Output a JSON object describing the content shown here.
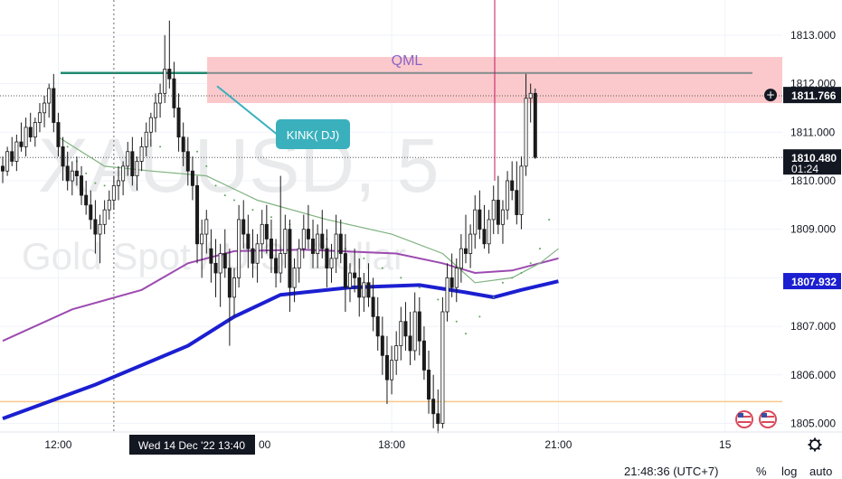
{
  "chart_data": {
    "type": "candlestick",
    "symbol_watermark": "XAUUSD, 5",
    "subtitle_watermark": "Gold Spot / U.S. Dollar",
    "ylim": [
      1804.6,
      1813.5
    ],
    "y_ticks": [
      1805.0,
      1806.0,
      1807.0,
      1808.0,
      1809.0,
      1810.0,
      1811.0,
      1812.0,
      1813.0
    ],
    "y_tick_labels": [
      "1805.000",
      "1806.000",
      "1807.000",
      "1808.000",
      "1809.000",
      "1810.000",
      "1811.000",
      "1812.000",
      "1813.000"
    ],
    "x_ticks": [
      {
        "label": "12:00",
        "bar": 12
      },
      {
        "label": "18:00",
        "bar": 84
      },
      {
        "label": "21:00",
        "bar": 120
      },
      {
        "label": "15",
        "bar": 156
      }
    ],
    "price_badges": [
      {
        "value": "1811.766",
        "color": "#131722"
      },
      {
        "value": "1810.480",
        "sub": "01:24",
        "color": "#131722"
      },
      {
        "value": "1807.932",
        "color": "#1b1fd0"
      }
    ],
    "crosshair": {
      "label": "Wed 14 Dec '22   13:40",
      "bar": 24
    },
    "annotations": {
      "zone_label": "QML",
      "zone_top": 1812.55,
      "zone_bottom": 1811.6,
      "qml_level": 1812.22,
      "callout": "KINK( DJ)",
      "support_level": 1805.45,
      "dotted_level": 1811.75,
      "last_price_level": 1810.48
    },
    "candles_ohlc": [
      [
        1810.3,
        1810.5,
        1809.95,
        1810.2
      ],
      [
        1810.2,
        1810.7,
        1810.1,
        1810.6
      ],
      [
        1810.6,
        1810.9,
        1810.3,
        1810.4
      ],
      [
        1810.4,
        1810.95,
        1810.2,
        1810.8
      ],
      [
        1810.8,
        1811.2,
        1810.6,
        1810.7
      ],
      [
        1810.7,
        1811.3,
        1810.5,
        1811.1
      ],
      [
        1811.1,
        1811.4,
        1810.8,
        1810.9
      ],
      [
        1810.9,
        1811.3,
        1810.7,
        1811.2
      ],
      [
        1811.2,
        1811.6,
        1811.0,
        1811.4
      ],
      [
        1811.4,
        1811.75,
        1811.1,
        1811.6
      ],
      [
        1811.6,
        1812.0,
        1811.3,
        1811.9
      ],
      [
        1811.9,
        1812.2,
        1811.0,
        1811.2
      ],
      [
        1811.2,
        1811.4,
        1810.5,
        1810.7
      ],
      [
        1810.7,
        1810.9,
        1810.0,
        1810.3
      ],
      [
        1810.3,
        1810.6,
        1809.8,
        1810.0
      ],
      [
        1810.0,
        1810.4,
        1809.7,
        1810.2
      ],
      [
        1810.2,
        1810.5,
        1809.9,
        1810.1
      ],
      [
        1810.1,
        1810.3,
        1809.5,
        1809.7
      ],
      [
        1809.7,
        1810.0,
        1809.3,
        1809.5
      ],
      [
        1809.5,
        1809.8,
        1809.0,
        1809.2
      ],
      [
        1809.2,
        1809.6,
        1808.5,
        1808.9
      ],
      [
        1808.9,
        1809.3,
        1808.3,
        1809.1
      ],
      [
        1809.1,
        1809.6,
        1808.9,
        1809.4
      ],
      [
        1809.4,
        1809.8,
        1809.2,
        1809.6
      ],
      [
        1809.6,
        1810.1,
        1809.4,
        1809.9
      ],
      [
        1809.9,
        1810.3,
        1809.6,
        1810.0
      ],
      [
        1810.0,
        1810.4,
        1809.7,
        1810.3
      ],
      [
        1810.3,
        1810.8,
        1810.1,
        1810.6
      ],
      [
        1810.6,
        1810.9,
        1809.9,
        1810.1
      ],
      [
        1810.1,
        1810.5,
        1809.8,
        1810.4
      ],
      [
        1810.4,
        1810.9,
        1810.2,
        1810.7
      ],
      [
        1810.7,
        1811.2,
        1810.5,
        1811.0
      ],
      [
        1811.0,
        1811.4,
        1810.7,
        1811.3
      ],
      [
        1811.3,
        1811.8,
        1811.0,
        1811.6
      ],
      [
        1811.6,
        1812.0,
        1811.3,
        1811.8
      ],
      [
        1811.8,
        1813.0,
        1811.6,
        1812.3
      ],
      [
        1812.3,
        1813.3,
        1811.9,
        1812.1
      ],
      [
        1812.1,
        1812.45,
        1811.3,
        1811.5
      ],
      [
        1811.5,
        1811.8,
        1810.6,
        1810.9
      ],
      [
        1810.9,
        1811.2,
        1810.3,
        1810.6
      ],
      [
        1810.6,
        1810.9,
        1809.9,
        1810.2
      ],
      [
        1810.2,
        1810.5,
        1809.6,
        1809.9
      ],
      [
        1809.9,
        1810.1,
        1808.3,
        1808.7
      ],
      [
        1808.7,
        1809.2,
        1808.0,
        1808.9
      ],
      [
        1808.9,
        1809.4,
        1808.5,
        1809.2
      ],
      [
        1808.6,
        1809.0,
        1807.9,
        1808.3
      ],
      [
        1808.3,
        1808.8,
        1807.6,
        1808.1
      ],
      [
        1808.1,
        1808.7,
        1807.4,
        1808.5
      ],
      [
        1808.5,
        1809.0,
        1808.0,
        1808.2
      ],
      [
        1808.2,
        1808.6,
        1806.6,
        1807.6
      ],
      [
        1807.6,
        1808.2,
        1807.2,
        1808.0
      ],
      [
        1808.0,
        1809.5,
        1807.8,
        1809.2
      ],
      [
        1809.2,
        1809.6,
        1808.6,
        1808.9
      ],
      [
        1808.9,
        1809.3,
        1808.2,
        1808.6
      ],
      [
        1808.6,
        1809.0,
        1808.0,
        1808.3
      ],
      [
        1808.3,
        1808.9,
        1807.9,
        1808.7
      ],
      [
        1808.7,
        1809.4,
        1808.4,
        1809.1
      ],
      [
        1809.1,
        1809.5,
        1808.5,
        1808.8
      ],
      [
        1808.8,
        1809.2,
        1808.1,
        1808.4
      ],
      [
        1808.4,
        1808.8,
        1807.8,
        1808.1
      ],
      [
        1808.1,
        1810.1,
        1807.9,
        1808.5
      ],
      [
        1808.5,
        1809.3,
        1808.2,
        1809.0
      ],
      [
        1809.0,
        1809.2,
        1807.3,
        1807.8
      ],
      [
        1807.8,
        1808.4,
        1807.5,
        1808.2
      ],
      [
        1808.2,
        1808.8,
        1807.9,
        1808.6
      ],
      [
        1808.6,
        1809.3,
        1808.4,
        1809.0
      ],
      [
        1809.0,
        1809.5,
        1808.6,
        1808.8
      ],
      [
        1808.8,
        1809.2,
        1808.2,
        1808.5
      ],
      [
        1808.5,
        1809.1,
        1808.2,
        1808.9
      ],
      [
        1808.9,
        1809.4,
        1808.4,
        1808.6
      ],
      [
        1808.6,
        1809.0,
        1807.8,
        1808.2
      ],
      [
        1808.2,
        1808.7,
        1807.9,
        1808.4
      ],
      [
        1808.4,
        1809.3,
        1808.1,
        1808.9
      ],
      [
        1808.9,
        1809.2,
        1808.3,
        1808.5
      ],
      [
        1808.5,
        1808.9,
        1807.3,
        1807.8
      ],
      [
        1807.8,
        1808.3,
        1807.5,
        1808.1
      ],
      [
        1808.1,
        1808.6,
        1807.7,
        1808.0
      ],
      [
        1808.0,
        1808.4,
        1807.2,
        1807.6
      ],
      [
        1807.6,
        1808.1,
        1807.3,
        1807.9
      ],
      [
        1807.9,
        1808.3,
        1807.4,
        1807.6
      ],
      [
        1807.6,
        1808.0,
        1806.9,
        1807.2
      ],
      [
        1807.2,
        1807.6,
        1806.5,
        1806.8
      ],
      [
        1806.8,
        1807.2,
        1806.0,
        1806.4
      ],
      [
        1806.4,
        1806.8,
        1805.4,
        1805.9
      ],
      [
        1805.9,
        1806.6,
        1805.6,
        1806.3
      ],
      [
        1806.3,
        1806.9,
        1806.0,
        1806.6
      ],
      [
        1806.6,
        1807.4,
        1806.3,
        1807.1
      ],
      [
        1807.1,
        1807.5,
        1806.5,
        1806.8
      ],
      [
        1806.8,
        1807.3,
        1806.2,
        1806.5
      ],
      [
        1806.5,
        1807.7,
        1806.3,
        1807.3
      ],
      [
        1807.3,
        1807.6,
        1806.4,
        1806.7
      ],
      [
        1806.7,
        1807.0,
        1805.9,
        1806.1
      ],
      [
        1806.1,
        1806.5,
        1805.2,
        1805.5
      ],
      [
        1805.5,
        1806.0,
        1804.9,
        1805.2
      ],
      [
        1805.2,
        1805.7,
        1804.8,
        1805.0
      ],
      [
        1805.0,
        1807.6,
        1804.9,
        1807.3
      ],
      [
        1807.3,
        1808.3,
        1807.1,
        1808.0
      ],
      [
        1808.0,
        1808.5,
        1807.6,
        1807.8
      ],
      [
        1807.8,
        1808.4,
        1807.5,
        1808.2
      ],
      [
        1808.2,
        1808.9,
        1807.9,
        1808.6
      ],
      [
        1808.6,
        1809.3,
        1808.3,
        1808.5
      ],
      [
        1808.5,
        1809.1,
        1808.2,
        1808.9
      ],
      [
        1808.9,
        1809.7,
        1808.6,
        1809.4
      ],
      [
        1809.4,
        1809.8,
        1808.8,
        1809.0
      ],
      [
        1809.0,
        1809.5,
        1808.6,
        1808.7
      ],
      [
        1808.7,
        1809.4,
        1808.5,
        1809.2
      ],
      [
        1809.2,
        1809.9,
        1808.9,
        1809.6
      ],
      [
        1809.6,
        1810.1,
        1808.9,
        1809.1
      ],
      [
        1809.1,
        1809.6,
        1808.7,
        1809.4
      ],
      [
        1809.4,
        1810.2,
        1809.2,
        1810.0
      ],
      [
        1810.0,
        1810.4,
        1809.6,
        1809.8
      ],
      [
        1809.8,
        1810.4,
        1809.1,
        1809.3
      ],
      [
        1809.3,
        1810.5,
        1809.0,
        1810.3
      ],
      [
        1810.3,
        1812.2,
        1810.1,
        1811.7
      ],
      [
        1811.7,
        1812.0,
        1811.2,
        1811.8
      ],
      [
        1811.8,
        1811.9,
        1810.45,
        1810.48
      ]
    ],
    "series": [
      {
        "name": "",
        "color": "#1b1fd0",
        "values_from_to": [
          1805.1,
          1807.93
        ]
      },
      {
        "name": "",
        "color": "#9c4bb0",
        "values_from_to": [
          1806.7,
          1808.4
        ]
      },
      {
        "name": "",
        "color": "#7fb27f",
        "values_from_to": [
          1810.9,
          1808.6
        ]
      }
    ]
  },
  "status_bar": {
    "clock": "21:48:36 (UTC+7)",
    "percent": "%",
    "log": "log",
    "auto": "auto"
  },
  "icons": {
    "add": "plus-circle-icon",
    "settings": "gear-icon",
    "flag": "us-flag-icon"
  }
}
